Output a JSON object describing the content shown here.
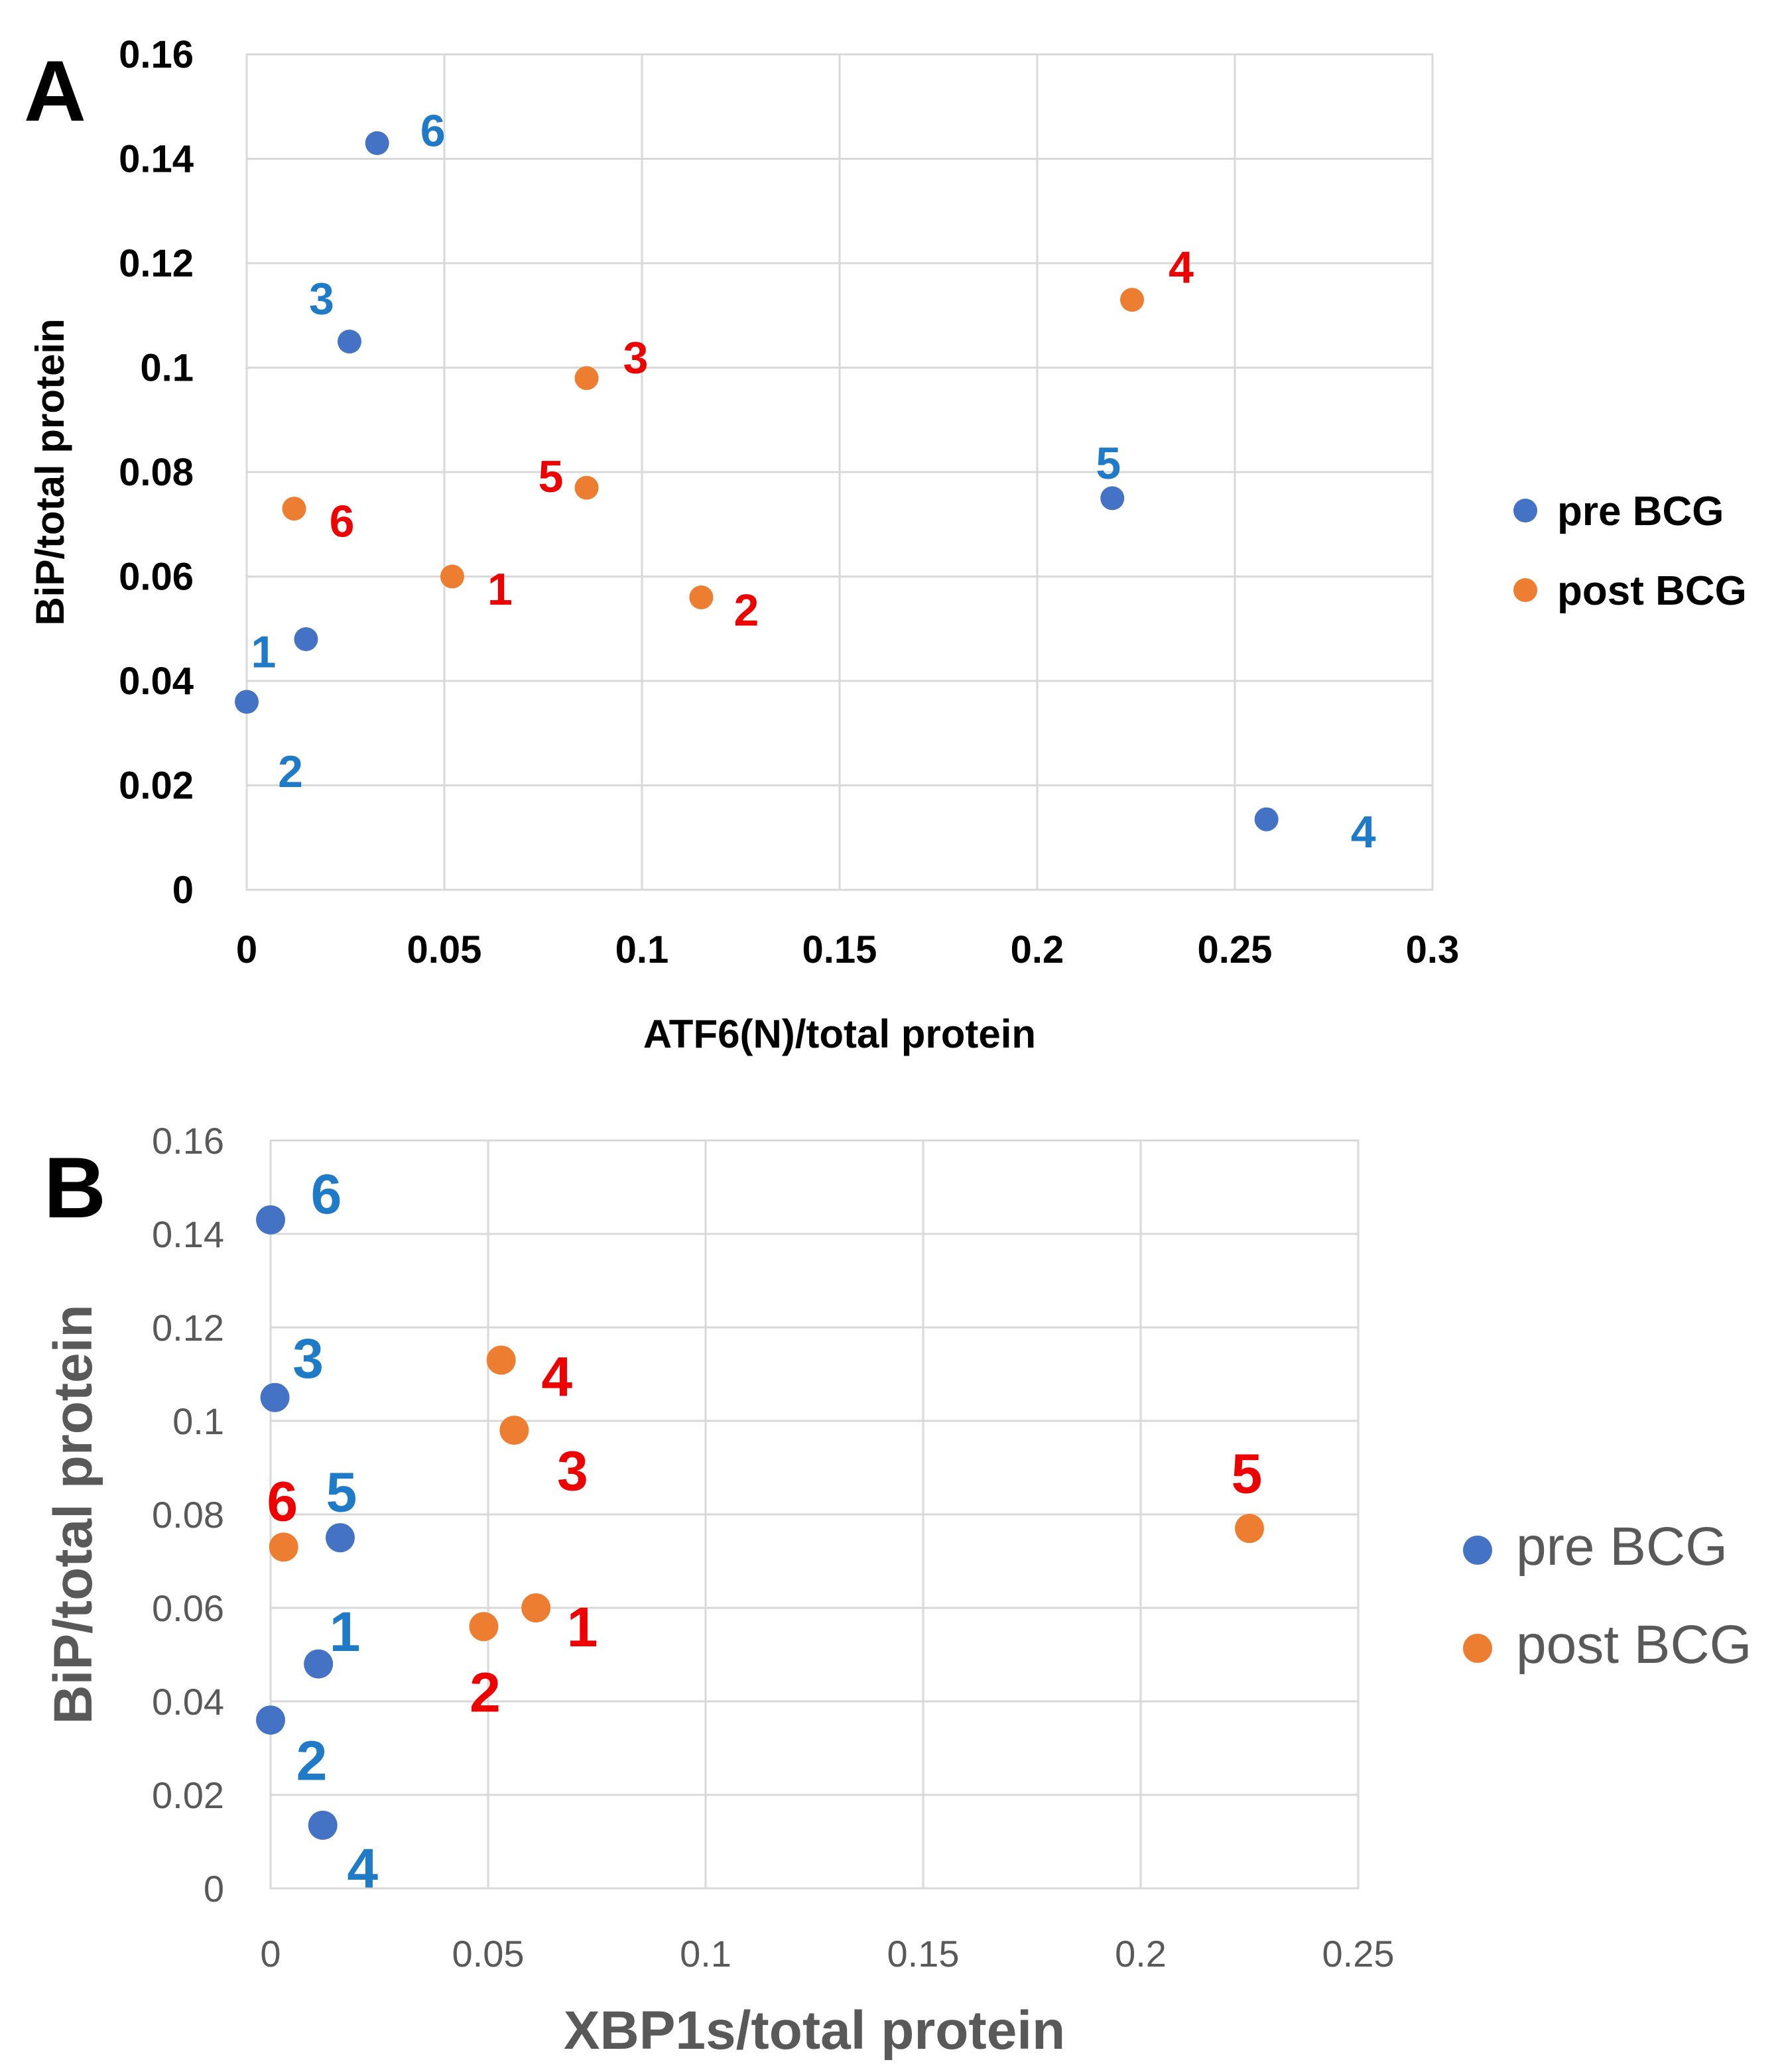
{
  "colors": {
    "pre": "#4472C4",
    "post": "#ED7D31",
    "pre_label": "#1F7AC8",
    "post_label": "#EE0000",
    "grid": "#D9D9D9"
  },
  "chart_data": [
    {
      "panel": "A",
      "type": "scatter",
      "title": "",
      "xlabel": "ATF6(N)/total protein",
      "ylabel": "BiP/total protein",
      "xlim": [
        0,
        0.3
      ],
      "ylim": [
        0,
        0.16
      ],
      "xticks": [
        "0",
        "0.05",
        "0.1",
        "0.15",
        "0.2",
        "0.25",
        "0.3"
      ],
      "yticks": [
        "0",
        "0.02",
        "0.04",
        "0.06",
        "0.08",
        "0.1",
        "0.12",
        "0.14",
        "0.16"
      ],
      "grid": true,
      "legend_position": "right",
      "series": [
        {
          "name": "pre BCG",
          "key": "pre",
          "points": [
            {
              "label": "1",
              "x": 0.015,
              "y": 0.048
            },
            {
              "label": "2",
              "x": 0.0,
              "y": 0.036
            },
            {
              "label": "3",
              "x": 0.026,
              "y": 0.105
            },
            {
              "label": "4",
              "x": 0.258,
              "y": 0.0135
            },
            {
              "label": "5",
              "x": 0.219,
              "y": 0.075
            },
            {
              "label": "6",
              "x": 0.033,
              "y": 0.143
            }
          ]
        },
        {
          "name": "post BCG",
          "key": "post",
          "points": [
            {
              "label": "1",
              "x": 0.052,
              "y": 0.06
            },
            {
              "label": "2",
              "x": 0.115,
              "y": 0.056
            },
            {
              "label": "3",
              "x": 0.086,
              "y": 0.098
            },
            {
              "label": "4",
              "x": 0.224,
              "y": 0.113
            },
            {
              "label": "5",
              "x": 0.086,
              "y": 0.077
            },
            {
              "label": "6",
              "x": 0.012,
              "y": 0.073
            }
          ]
        }
      ]
    },
    {
      "panel": "B",
      "type": "scatter",
      "title": "",
      "xlabel": "XBP1s/total protein",
      "ylabel": "BiP/total protein",
      "xlim": [
        0,
        0.25
      ],
      "ylim": [
        0,
        0.16
      ],
      "xticks": [
        "0",
        "0.05",
        "0.1",
        "0.15",
        "0.2",
        "0.25"
      ],
      "yticks": [
        "0",
        "0.02",
        "0.04",
        "0.06",
        "0.08",
        "0.1",
        "0.12",
        "0.14",
        "0.16"
      ],
      "grid": true,
      "legend_position": "right",
      "series": [
        {
          "name": "pre BCG",
          "key": "pre",
          "points": [
            {
              "label": "1",
              "x": 0.011,
              "y": 0.048
            },
            {
              "label": "2",
              "x": 0.0,
              "y": 0.036
            },
            {
              "label": "3",
              "x": 0.001,
              "y": 0.105
            },
            {
              "label": "4",
              "x": 0.012,
              "y": 0.0135
            },
            {
              "label": "5",
              "x": 0.016,
              "y": 0.075
            },
            {
              "label": "6",
              "x": 0.0,
              "y": 0.143
            }
          ]
        },
        {
          "name": "post BCG",
          "key": "post",
          "points": [
            {
              "label": "1",
              "x": 0.061,
              "y": 0.06
            },
            {
              "label": "2",
              "x": 0.049,
              "y": 0.056
            },
            {
              "label": "3",
              "x": 0.056,
              "y": 0.098
            },
            {
              "label": "4",
              "x": 0.053,
              "y": 0.113
            },
            {
              "label": "5",
              "x": 0.225,
              "y": 0.077
            },
            {
              "label": "6",
              "x": 0.003,
              "y": 0.073
            }
          ]
        }
      ]
    }
  ]
}
